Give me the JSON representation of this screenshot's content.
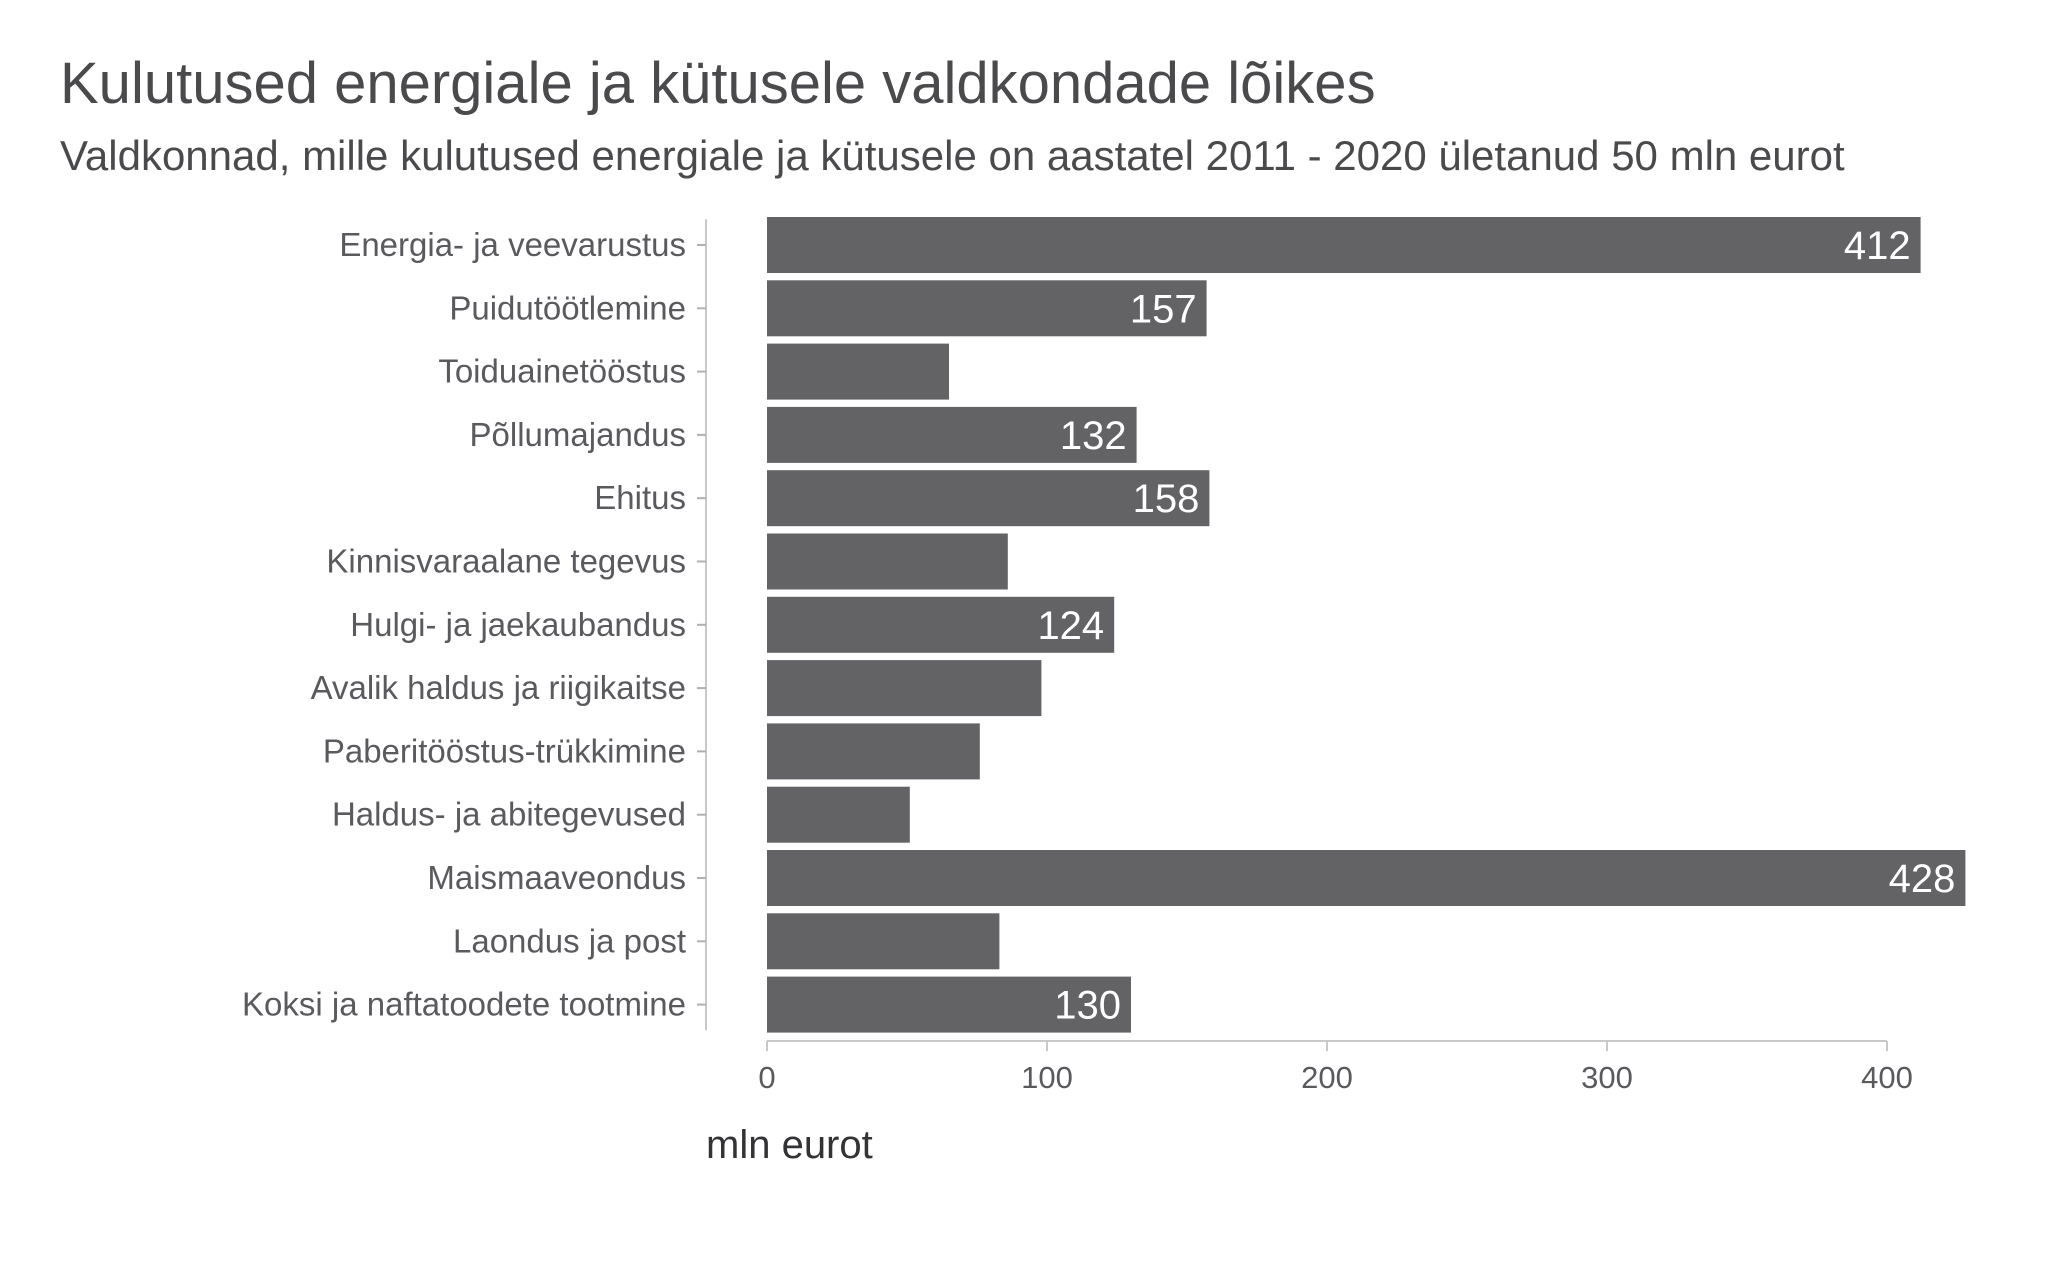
{
  "chart_data": {
    "type": "bar",
    "orientation": "horizontal",
    "title": "Kulutused energiale ja kütusele valdkondade lõikes",
    "subtitle": "Valdkonnad, mille kulutused energiale ja kütusele on aastatel 2011 - 2020 ületanud 50 mln eurot",
    "xlabel": "mln eurot",
    "ylabel": "",
    "xlim": [
      0,
      428
    ],
    "xticks": [
      0,
      100,
      200,
      300,
      400
    ],
    "xtick_labels": [
      "0",
      "100",
      "200",
      "300",
      "400"
    ],
    "grid": false,
    "categories": [
      "Energia- ja veevarustus",
      "Puidutöötlemine",
      "Toiduainetööstus",
      "Põllumajandus",
      "Ehitus",
      "Kinnisvaraalane tegevus",
      "Hulgi- ja jaekaubandus",
      "Avalik haldus ja riigikaitse",
      "Paberitööstus-trükkimine",
      "Haldus- ja abitegevused",
      "Maismaaveondus",
      "Laondus ja post",
      "Koksi ja naftatoodete tootmine"
    ],
    "values": [
      412,
      157,
      65,
      132,
      158,
      86,
      124,
      98,
      76,
      51,
      428,
      83,
      130
    ],
    "data_labels": [
      "412",
      "157",
      "",
      "132",
      "158",
      "",
      "124",
      "",
      "",
      "",
      "428",
      "",
      "130"
    ],
    "colors": {
      "bar": "#636366",
      "value_label": "#ffffff"
    }
  }
}
